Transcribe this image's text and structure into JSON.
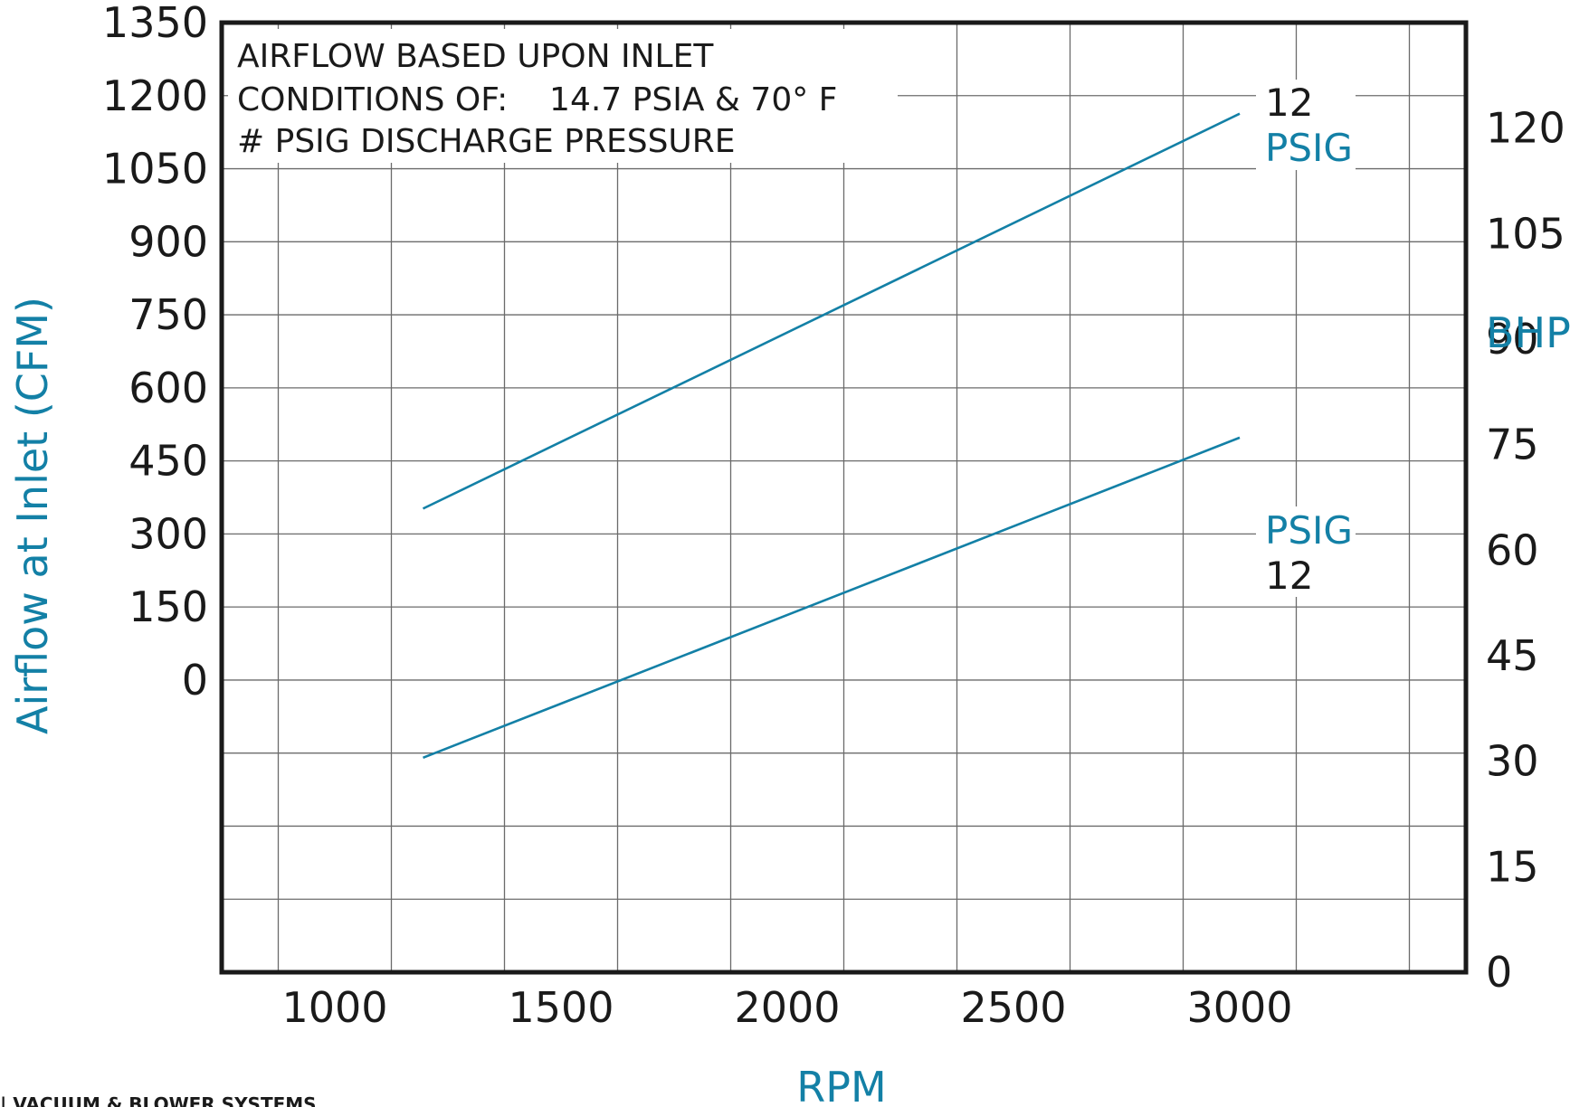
{
  "chart_data": {
    "type": "line",
    "xlabel": "RPM",
    "ylabel": "Airflow at Inlet (CFM)",
    "y2label": "BHP",
    "x_ticks": [
      "1000",
      "1500",
      "2000",
      "2500",
      "3000"
    ],
    "y_ticks": [
      "0",
      "150",
      "300",
      "450",
      "600",
      "750",
      "900",
      "1050",
      "1200",
      "1350"
    ],
    "y2_ticks": [
      "0",
      "15",
      "30",
      "45",
      "60",
      "75",
      "90",
      "105",
      "120"
    ],
    "xlim": [
      750,
      3500
    ],
    "ylim": [
      -600,
      1350
    ],
    "y2lim": [
      0,
      135
    ],
    "grid": true,
    "notes": [
      "AIRFLOW BASED UPON INLET",
      "CONDITIONS OF:    14.7 PSIA & 70° F",
      "# PSIG DISCHARGE PRESSURE"
    ],
    "series": [
      {
        "name": "12 PSIG",
        "axis": "CFM",
        "label_top": "12",
        "label_bottom": "PSIG",
        "x": [
          1195,
          3000
        ],
        "y": [
          352,
          1163
        ]
      },
      {
        "name": "12 PSIG",
        "axis": "BHP",
        "label_top": "PSIG",
        "label_bottom": "12",
        "x": [
          1195,
          3000
        ],
        "y": [
          30.5,
          76
        ]
      }
    ]
  },
  "colors": {
    "accent": "#1380a6",
    "ink": "#1a1a1a",
    "grid": "#6b6b6b"
  },
  "footer": "| VACUUM & BLOWER SYSTEMS"
}
